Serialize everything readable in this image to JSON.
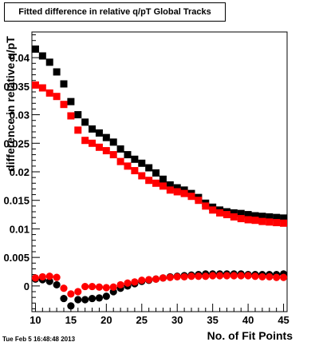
{
  "timestamp": "Tue Feb  5 16:48:48 2013",
  "chart_data": {
    "type": "scatter",
    "title": "Fitted difference in relative q/pT  Global Tracks",
    "xlabel": "No. of Fit Points",
    "ylabel": "difference in relative q/pT",
    "xlim": [
      9.5,
      45.5
    ],
    "ylim": [
      -0.0045,
      0.0445
    ],
    "xticks": [
      10,
      15,
      20,
      25,
      30,
      35,
      40,
      45
    ],
    "xtick_labels": [
      "10",
      "15",
      "20",
      "25",
      "30",
      "35",
      "40",
      "45"
    ],
    "yticks": [
      0,
      0.005,
      0.01,
      0.015,
      0.02,
      0.025,
      0.03,
      0.035,
      0.04
    ],
    "ytick_labels": [
      "0",
      "0.005",
      "0.01",
      "0.015",
      "0.02",
      "0.025",
      "0.03",
      "0.035",
      "0.04"
    ],
    "grid": false,
    "x": [
      10,
      11,
      12,
      13,
      14,
      15,
      16,
      17,
      18,
      19,
      20,
      21,
      22,
      23,
      24,
      25,
      26,
      27,
      28,
      29,
      30,
      31,
      32,
      33,
      34,
      35,
      36,
      37,
      38,
      39,
      40,
      41,
      42,
      43,
      44,
      45
    ],
    "series": [
      {
        "marker": "square",
        "color": "#000000",
        "values": [
          0.0415,
          0.0403,
          0.0392,
          0.0375,
          0.0354,
          0.0323,
          0.03,
          0.0287,
          0.0275,
          0.0268,
          0.026,
          0.0252,
          0.024,
          0.023,
          0.0222,
          0.0215,
          0.0207,
          0.0198,
          0.0187,
          0.0177,
          0.0172,
          0.0168,
          0.0162,
          0.0155,
          0.0145,
          0.0138,
          0.0133,
          0.013,
          0.0128,
          0.0127,
          0.0125,
          0.0123,
          0.0122,
          0.0121,
          0.012,
          0.0119
        ]
      },
      {
        "marker": "square",
        "color": "#ff0000",
        "values": [
          0.0352,
          0.0347,
          0.0338,
          0.0332,
          0.0318,
          0.0298,
          0.0273,
          0.0255,
          0.025,
          0.0243,
          0.0237,
          0.023,
          0.0218,
          0.021,
          0.0202,
          0.0193,
          0.0185,
          0.018,
          0.0175,
          0.0168,
          0.0165,
          0.0162,
          0.0157,
          0.015,
          0.014,
          0.0133,
          0.0128,
          0.0125,
          0.0121,
          0.0118,
          0.0116,
          0.0115,
          0.0113,
          0.0112,
          0.0111,
          0.011
        ]
      },
      {
        "marker": "circle",
        "color": "#000000",
        "values": [
          0.0012,
          0.0011,
          0.0008,
          0.0002,
          -0.0022,
          -0.0035,
          -0.0024,
          -0.0024,
          -0.0022,
          -0.0021,
          -0.0018,
          -0.001,
          -0.0004,
          0.0,
          0.0004,
          0.0008,
          0.001,
          0.0012,
          0.0014,
          0.0016,
          0.0017,
          0.0018,
          0.0019,
          0.002,
          0.0021,
          0.0021,
          0.0021,
          0.0021,
          0.0021,
          0.0021,
          0.002,
          0.002,
          0.002,
          0.002,
          0.002,
          0.0021
        ]
      },
      {
        "marker": "circle",
        "color": "#ff0000",
        "values": [
          0.0014,
          0.0016,
          0.0017,
          0.0015,
          -0.0004,
          -0.0014,
          -0.001,
          -0.0001,
          -0.0001,
          -0.0002,
          -0.0003,
          -0.0002,
          0.0002,
          0.0005,
          0.0007,
          0.001,
          0.0011,
          0.0012,
          0.0014,
          0.0015,
          0.0016,
          0.0016,
          0.0017,
          0.0017,
          0.0017,
          0.0018,
          0.0018,
          0.0018,
          0.0018,
          0.0018,
          0.0018,
          0.0017,
          0.0016,
          0.0016,
          0.0015,
          0.0015
        ]
      }
    ]
  }
}
